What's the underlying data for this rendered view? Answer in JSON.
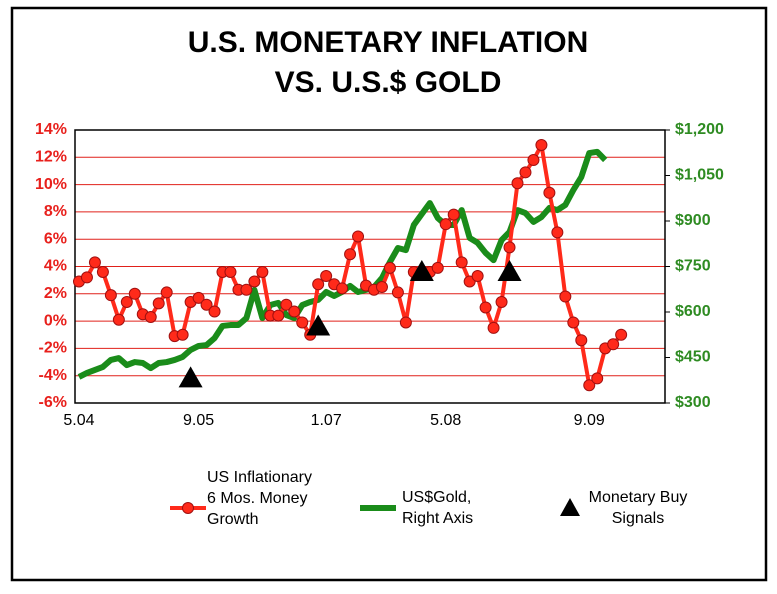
{
  "chart_data": {
    "type": "line",
    "title": [
      "U.S. MONETARY INFLATION",
      "VS. U.S.$ GOLD"
    ],
    "categories": [
      "5.04",
      null,
      null,
      null,
      null,
      null,
      null,
      null,
      null,
      null,
      null,
      null,
      null,
      null,
      null,
      "9.05",
      null,
      null,
      null,
      null,
      null,
      null,
      null,
      null,
      null,
      null,
      null,
      null,
      null,
      null,
      null,
      "1.07",
      null,
      null,
      null,
      null,
      null,
      null,
      null,
      null,
      null,
      null,
      null,
      null,
      null,
      null,
      "5.08",
      null,
      null,
      null,
      null,
      null,
      null,
      null,
      null,
      null,
      null,
      null,
      null,
      null,
      null,
      null,
      null,
      null,
      "9.09",
      null,
      null,
      null,
      null,
      null,
      null,
      null,
      null,
      null
    ],
    "ylim": [
      -6,
      14
    ],
    "yticks": [
      {
        "value": -6,
        "label": "-6%"
      },
      {
        "value": -4,
        "label": "-4%"
      },
      {
        "value": -2,
        "label": "-2%"
      },
      {
        "value": 0,
        "label": "0%"
      },
      {
        "value": 2,
        "label": "2%"
      },
      {
        "value": 4,
        "label": "4%"
      },
      {
        "value": 6,
        "label": "6%"
      },
      {
        "value": 8,
        "label": "8%"
      },
      {
        "value": 10,
        "label": "10%"
      },
      {
        "value": 12,
        "label": "12%"
      },
      {
        "value": 14,
        "label": "14%"
      }
    ],
    "y2lim": [
      300,
      1200
    ],
    "y2ticks": [
      {
        "value": 300,
        "label": "$300"
      },
      {
        "value": 450,
        "label": "$450"
      },
      {
        "value": 600,
        "label": "$600"
      },
      {
        "value": 750,
        "label": "$750"
      },
      {
        "value": 900,
        "label": "$900"
      },
      {
        "value": 1050,
        "label": "$1,050"
      },
      {
        "value": 1200,
        "label": "$1,200"
      }
    ],
    "grid": true,
    "grid_color": "#e0201a",
    "ytick_color": "#e8201c",
    "y2tick_color": "#2e8b22",
    "series": [
      {
        "name": "US Inflationary 6 Mos. Money Growth",
        "color": "#ff2a1a",
        "axis": "y",
        "marker": "circle",
        "line": true,
        "values": [
          2.9,
          3.2,
          4.3,
          3.6,
          1.9,
          0.1,
          1.4,
          2.0,
          0.5,
          0.3,
          1.3,
          2.1,
          -1.1,
          -1.0,
          1.4,
          1.7,
          1.2,
          0.7,
          3.6,
          3.6,
          2.3,
          2.3,
          2.9,
          3.6,
          0.4,
          0.4,
          1.2,
          0.7,
          -0.1,
          -1.0,
          2.7,
          3.3,
          2.7,
          2.4,
          4.9,
          6.2,
          2.6,
          2.3,
          2.5,
          3.9,
          2.1,
          -0.1,
          3.6,
          3.6,
          3.6,
          3.9,
          7.1,
          7.8,
          4.3,
          2.9,
          3.3,
          1.0,
          -0.5,
          1.4,
          5.4,
          10.1,
          10.9,
          11.8,
          12.9,
          9.4,
          6.5,
          1.8,
          -0.1,
          -1.4,
          -4.7,
          -4.2,
          -2.0,
          -1.7,
          -1.0,
          null,
          null,
          null,
          null,
          null
        ]
      },
      {
        "name": "US$Gold, Right Axis",
        "color": "#1a8c1a",
        "axis": "y2",
        "marker": "none",
        "line": true,
        "values": [
          386,
          399,
          409,
          419,
          442,
          448,
          425,
          435,
          432,
          415,
          432,
          435,
          442,
          452,
          475,
          488,
          491,
          514,
          554,
          557,
          557,
          580,
          673,
          580,
          623,
          630,
          590,
          580,
          623,
          633,
          640,
          666,
          653,
          666,
          686,
          666,
          673,
          682,
          712,
          765,
          811,
          804,
          887,
          923,
          959,
          910,
          887,
          887,
          936,
          844,
          828,
          795,
          771,
          837,
          864,
          936,
          926,
          897,
          913,
          943,
          936,
          953,
          1002,
          1045,
          1124,
          1128,
          1101,
          null,
          null,
          null,
          null,
          null,
          null,
          null
        ]
      },
      {
        "name": "Monetary Buy Signals",
        "color": "#000000",
        "axis": "y",
        "marker": "triangle",
        "line": false,
        "values": [
          null,
          null,
          null,
          null,
          null,
          null,
          null,
          null,
          null,
          null,
          null,
          null,
          null,
          null,
          -4.2,
          null,
          null,
          null,
          null,
          null,
          null,
          null,
          null,
          null,
          null,
          null,
          null,
          null,
          null,
          null,
          -0.4,
          null,
          null,
          null,
          null,
          null,
          null,
          null,
          null,
          null,
          null,
          null,
          null,
          3.6,
          null,
          null,
          null,
          null,
          null,
          null,
          null,
          null,
          null,
          null,
          3.6,
          null,
          null,
          null,
          null,
          null,
          null,
          null,
          null,
          null,
          null,
          null,
          null,
          null,
          null,
          null,
          null,
          null,
          null,
          null
        ]
      }
    ]
  }
}
